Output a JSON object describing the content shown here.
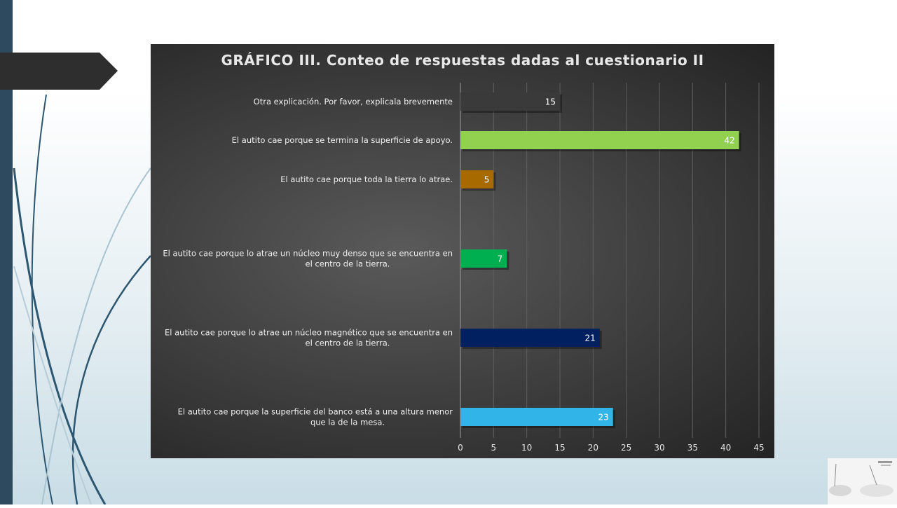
{
  "chart_data": {
    "type": "bar",
    "orientation": "horizontal",
    "title": "GRÁFICO III. Conteo de respuestas dadas al cuestionario II",
    "categories": [
      "Otra explicación. Por favor, explicala brevemente",
      "El autito cae porque se termina la superficie de apoyo.",
      "El autito cae porque toda la tierra lo atrae.",
      "El autito cae porque lo atrae un núcleo muy denso que se encuentra en el centro de la tierra.",
      "El autito cae porque lo atrae un núcleo magnético que se encuentra en el centro de la tierra.",
      "El autito cae porque la superficie del banco está a una altura menor que la de la mesa."
    ],
    "label_lines": [
      [
        "Otra explicación. Por favor, explicala brevemente"
      ],
      [
        "El autito cae porque se termina la superficie de apoyo."
      ],
      [
        "El autito cae porque toda la tierra lo atrae."
      ],
      [
        "El autito cae porque lo atrae un núcleo muy denso que se encuentra en",
        "el centro de la tierra."
      ],
      [
        "El autito cae porque lo atrae un núcleo magnético que se encuentra en",
        "el centro de la tierra."
      ],
      [
        "El autito cae porque la superficie del banco está a una altura menor",
        "que la de la mesa."
      ]
    ],
    "values": [
      15,
      42,
      5,
      7,
      21,
      23
    ],
    "colors": [
      "#3a3a3a",
      "#92d050",
      "#a66a00",
      "#00b050",
      "#002060",
      "#31b5e8"
    ],
    "xlim": [
      0,
      45
    ],
    "xticks": [
      0,
      5,
      10,
      15,
      20,
      25,
      30,
      35,
      40,
      45
    ],
    "grid": true,
    "xlabel": "",
    "ylabel": ""
  }
}
